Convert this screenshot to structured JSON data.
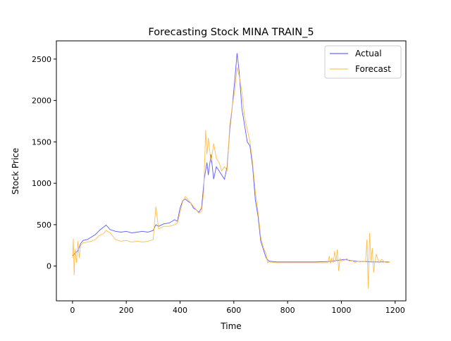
{
  "chart_data": {
    "type": "line",
    "title": "Forecasting Stock MINA TRAIN_5",
    "xlabel": "Time",
    "ylabel": "Stock Price",
    "xlim": [
      -60,
      1240
    ],
    "ylim": [
      -420,
      2720
    ],
    "x_ticks": [
      0,
      200,
      400,
      600,
      800,
      1000,
      1200
    ],
    "y_ticks": [
      0,
      500,
      1000,
      1500,
      2000,
      2500
    ],
    "grid": false,
    "legend_position": "top-right",
    "series": [
      {
        "name": "Actual",
        "color": "#4040ff",
        "points": [
          [
            0,
            120
          ],
          [
            10,
            160
          ],
          [
            20,
            180
          ],
          [
            30,
            270
          ],
          [
            40,
            310
          ],
          [
            55,
            320
          ],
          [
            70,
            350
          ],
          [
            85,
            380
          ],
          [
            100,
            430
          ],
          [
            115,
            470
          ],
          [
            125,
            495
          ],
          [
            140,
            440
          ],
          [
            160,
            420
          ],
          [
            180,
            410
          ],
          [
            200,
            420
          ],
          [
            220,
            400
          ],
          [
            240,
            410
          ],
          [
            260,
            420
          ],
          [
            280,
            410
          ],
          [
            300,
            430
          ],
          [
            310,
            500
          ],
          [
            320,
            480
          ],
          [
            340,
            510
          ],
          [
            360,
            520
          ],
          [
            380,
            560
          ],
          [
            390,
            540
          ],
          [
            400,
            700
          ],
          [
            410,
            790
          ],
          [
            420,
            810
          ],
          [
            430,
            780
          ],
          [
            440,
            760
          ],
          [
            450,
            700
          ],
          [
            460,
            680
          ],
          [
            470,
            650
          ],
          [
            480,
            700
          ],
          [
            490,
            1050
          ],
          [
            500,
            1250
          ],
          [
            505,
            1100
          ],
          [
            515,
            1350
          ],
          [
            525,
            1050
          ],
          [
            535,
            1200
          ],
          [
            545,
            1150
          ],
          [
            555,
            1100
          ],
          [
            565,
            1050
          ],
          [
            575,
            1200
          ],
          [
            585,
            1650
          ],
          [
            595,
            1950
          ],
          [
            605,
            2300
          ],
          [
            612,
            2570
          ],
          [
            620,
            2350
          ],
          [
            630,
            1900
          ],
          [
            640,
            1700
          ],
          [
            650,
            1500
          ],
          [
            660,
            1450
          ],
          [
            670,
            1200
          ],
          [
            680,
            800
          ],
          [
            690,
            600
          ],
          [
            700,
            300
          ],
          [
            710,
            200
          ],
          [
            720,
            100
          ],
          [
            730,
            60
          ],
          [
            760,
            50
          ],
          [
            800,
            50
          ],
          [
            850,
            50
          ],
          [
            900,
            50
          ],
          [
            950,
            55
          ],
          [
            970,
            60
          ],
          [
            990,
            70
          ],
          [
            1010,
            80
          ],
          [
            1030,
            70
          ],
          [
            1050,
            60
          ],
          [
            1070,
            55
          ],
          [
            1090,
            55
          ],
          [
            1110,
            50
          ],
          [
            1130,
            50
          ],
          [
            1150,
            50
          ],
          [
            1180,
            50
          ]
        ]
      },
      {
        "name": "Forecast",
        "color": "#ffb733",
        "points": [
          [
            0,
            100
          ],
          [
            3,
            330
          ],
          [
            6,
            -110
          ],
          [
            10,
            200
          ],
          [
            15,
            40
          ],
          [
            20,
            300
          ],
          [
            25,
            100
          ],
          [
            30,
            250
          ],
          [
            40,
            280
          ],
          [
            55,
            290
          ],
          [
            70,
            300
          ],
          [
            85,
            320
          ],
          [
            100,
            370
          ],
          [
            115,
            390
          ],
          [
            125,
            430
          ],
          [
            140,
            400
          ],
          [
            160,
            320
          ],
          [
            180,
            300
          ],
          [
            200,
            310
          ],
          [
            220,
            290
          ],
          [
            240,
            300
          ],
          [
            260,
            290
          ],
          [
            280,
            300
          ],
          [
            300,
            320
          ],
          [
            310,
            720
          ],
          [
            320,
            450
          ],
          [
            340,
            480
          ],
          [
            360,
            480
          ],
          [
            380,
            500
          ],
          [
            390,
            520
          ],
          [
            400,
            650
          ],
          [
            410,
            780
          ],
          [
            420,
            840
          ],
          [
            430,
            800
          ],
          [
            440,
            760
          ],
          [
            450,
            720
          ],
          [
            460,
            680
          ],
          [
            470,
            640
          ],
          [
            480,
            660
          ],
          [
            488,
            900
          ],
          [
            495,
            1640
          ],
          [
            500,
            1350
          ],
          [
            505,
            1550
          ],
          [
            515,
            1250
          ],
          [
            525,
            1480
          ],
          [
            535,
            1300
          ],
          [
            545,
            1250
          ],
          [
            555,
            1150
          ],
          [
            565,
            1200
          ],
          [
            575,
            1150
          ],
          [
            585,
            1700
          ],
          [
            595,
            1950
          ],
          [
            605,
            2150
          ],
          [
            612,
            2400
          ],
          [
            620,
            2300
          ],
          [
            630,
            2100
          ],
          [
            640,
            1800
          ],
          [
            650,
            1650
          ],
          [
            660,
            1500
          ],
          [
            670,
            1250
          ],
          [
            680,
            900
          ],
          [
            690,
            650
          ],
          [
            700,
            350
          ],
          [
            710,
            220
          ],
          [
            720,
            150
          ],
          [
            725,
            40
          ],
          [
            730,
            50
          ],
          [
            760,
            40
          ],
          [
            800,
            40
          ],
          [
            850,
            40
          ],
          [
            900,
            40
          ],
          [
            950,
            40
          ],
          [
            955,
            120
          ],
          [
            960,
            30
          ],
          [
            965,
            100
          ],
          [
            970,
            40
          ],
          [
            975,
            180
          ],
          [
            980,
            60
          ],
          [
            985,
            200
          ],
          [
            990,
            -60
          ],
          [
            995,
            90
          ],
          [
            1000,
            60
          ],
          [
            1010,
            70
          ],
          [
            1020,
            90
          ],
          [
            1030,
            60
          ],
          [
            1040,
            70
          ],
          [
            1050,
            40
          ],
          [
            1060,
            60
          ],
          [
            1070,
            50
          ],
          [
            1080,
            60
          ],
          [
            1090,
            50
          ],
          [
            1095,
            320
          ],
          [
            1100,
            -270
          ],
          [
            1105,
            400
          ],
          [
            1110,
            60
          ],
          [
            1115,
            220
          ],
          [
            1120,
            -80
          ],
          [
            1125,
            60
          ],
          [
            1130,
            140
          ],
          [
            1140,
            40
          ],
          [
            1150,
            80
          ],
          [
            1160,
            50
          ],
          [
            1170,
            40
          ],
          [
            1180,
            50
          ]
        ]
      }
    ]
  }
}
